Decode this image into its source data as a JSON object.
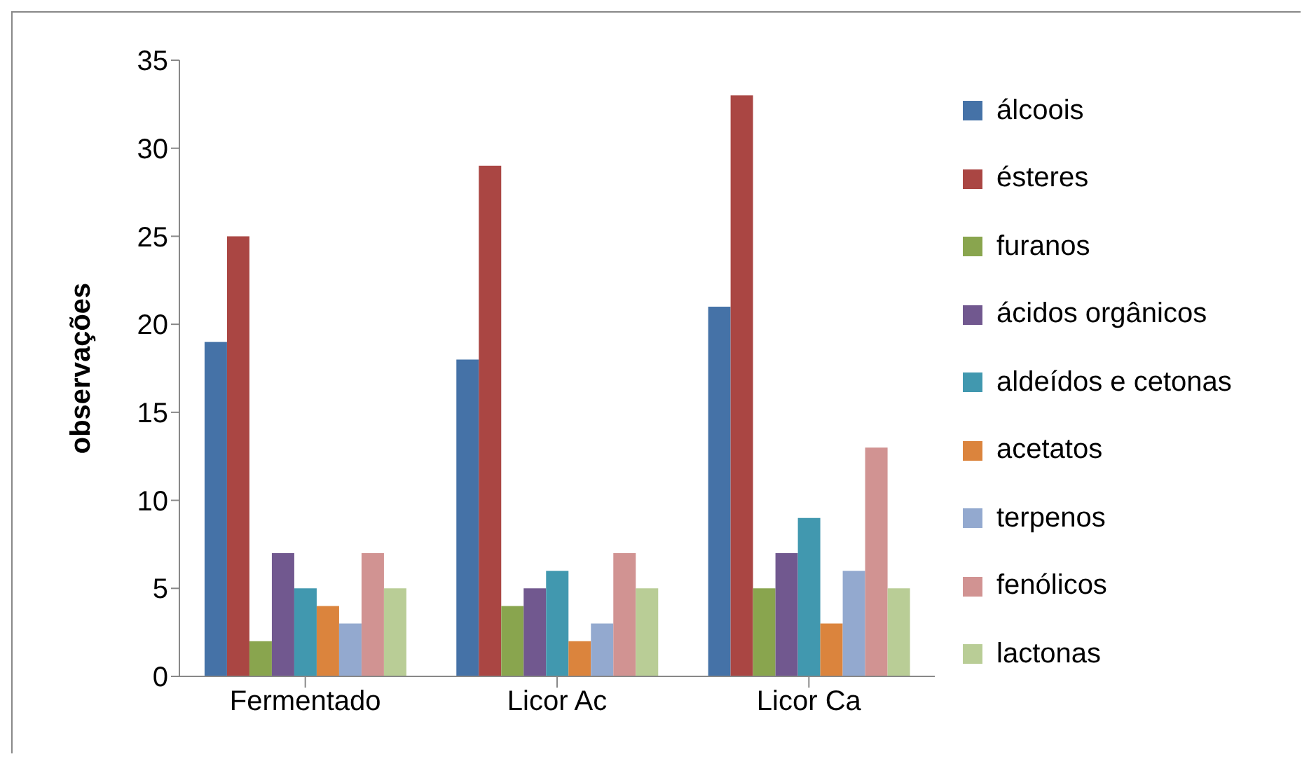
{
  "chart_data": {
    "type": "bar",
    "ylabel": "observações",
    "categories": [
      "Fermentado",
      "Licor Ac",
      "Licor Ca"
    ],
    "series": [
      {
        "name": "álcoois",
        "color": "#4572a7",
        "values": [
          19,
          18,
          21
        ]
      },
      {
        "name": "ésteres",
        "color": "#aa4643",
        "values": [
          25,
          29,
          33
        ]
      },
      {
        "name": "furanos",
        "color": "#89a54e",
        "values": [
          2,
          4,
          5
        ]
      },
      {
        "name": "ácidos orgânicos",
        "color": "#71588f",
        "values": [
          7,
          5,
          7
        ]
      },
      {
        "name": "aldeídos e cetonas",
        "color": "#4198af",
        "values": [
          5,
          6,
          9
        ]
      },
      {
        "name": "acetatos",
        "color": "#db843d",
        "values": [
          4,
          2,
          3
        ]
      },
      {
        "name": "terpenos",
        "color": "#93a9cf",
        "values": [
          3,
          3,
          6
        ]
      },
      {
        "name": "fenólicos",
        "color": "#d19392",
        "values": [
          7,
          7,
          13
        ]
      },
      {
        "name": "lactonas",
        "color": "#b9cd96",
        "values": [
          5,
          5,
          5
        ]
      }
    ],
    "ylim": [
      0,
      35
    ],
    "yticks": [
      0,
      5,
      10,
      15,
      20,
      25,
      30,
      35
    ],
    "grid": false,
    "legend": "right"
  }
}
